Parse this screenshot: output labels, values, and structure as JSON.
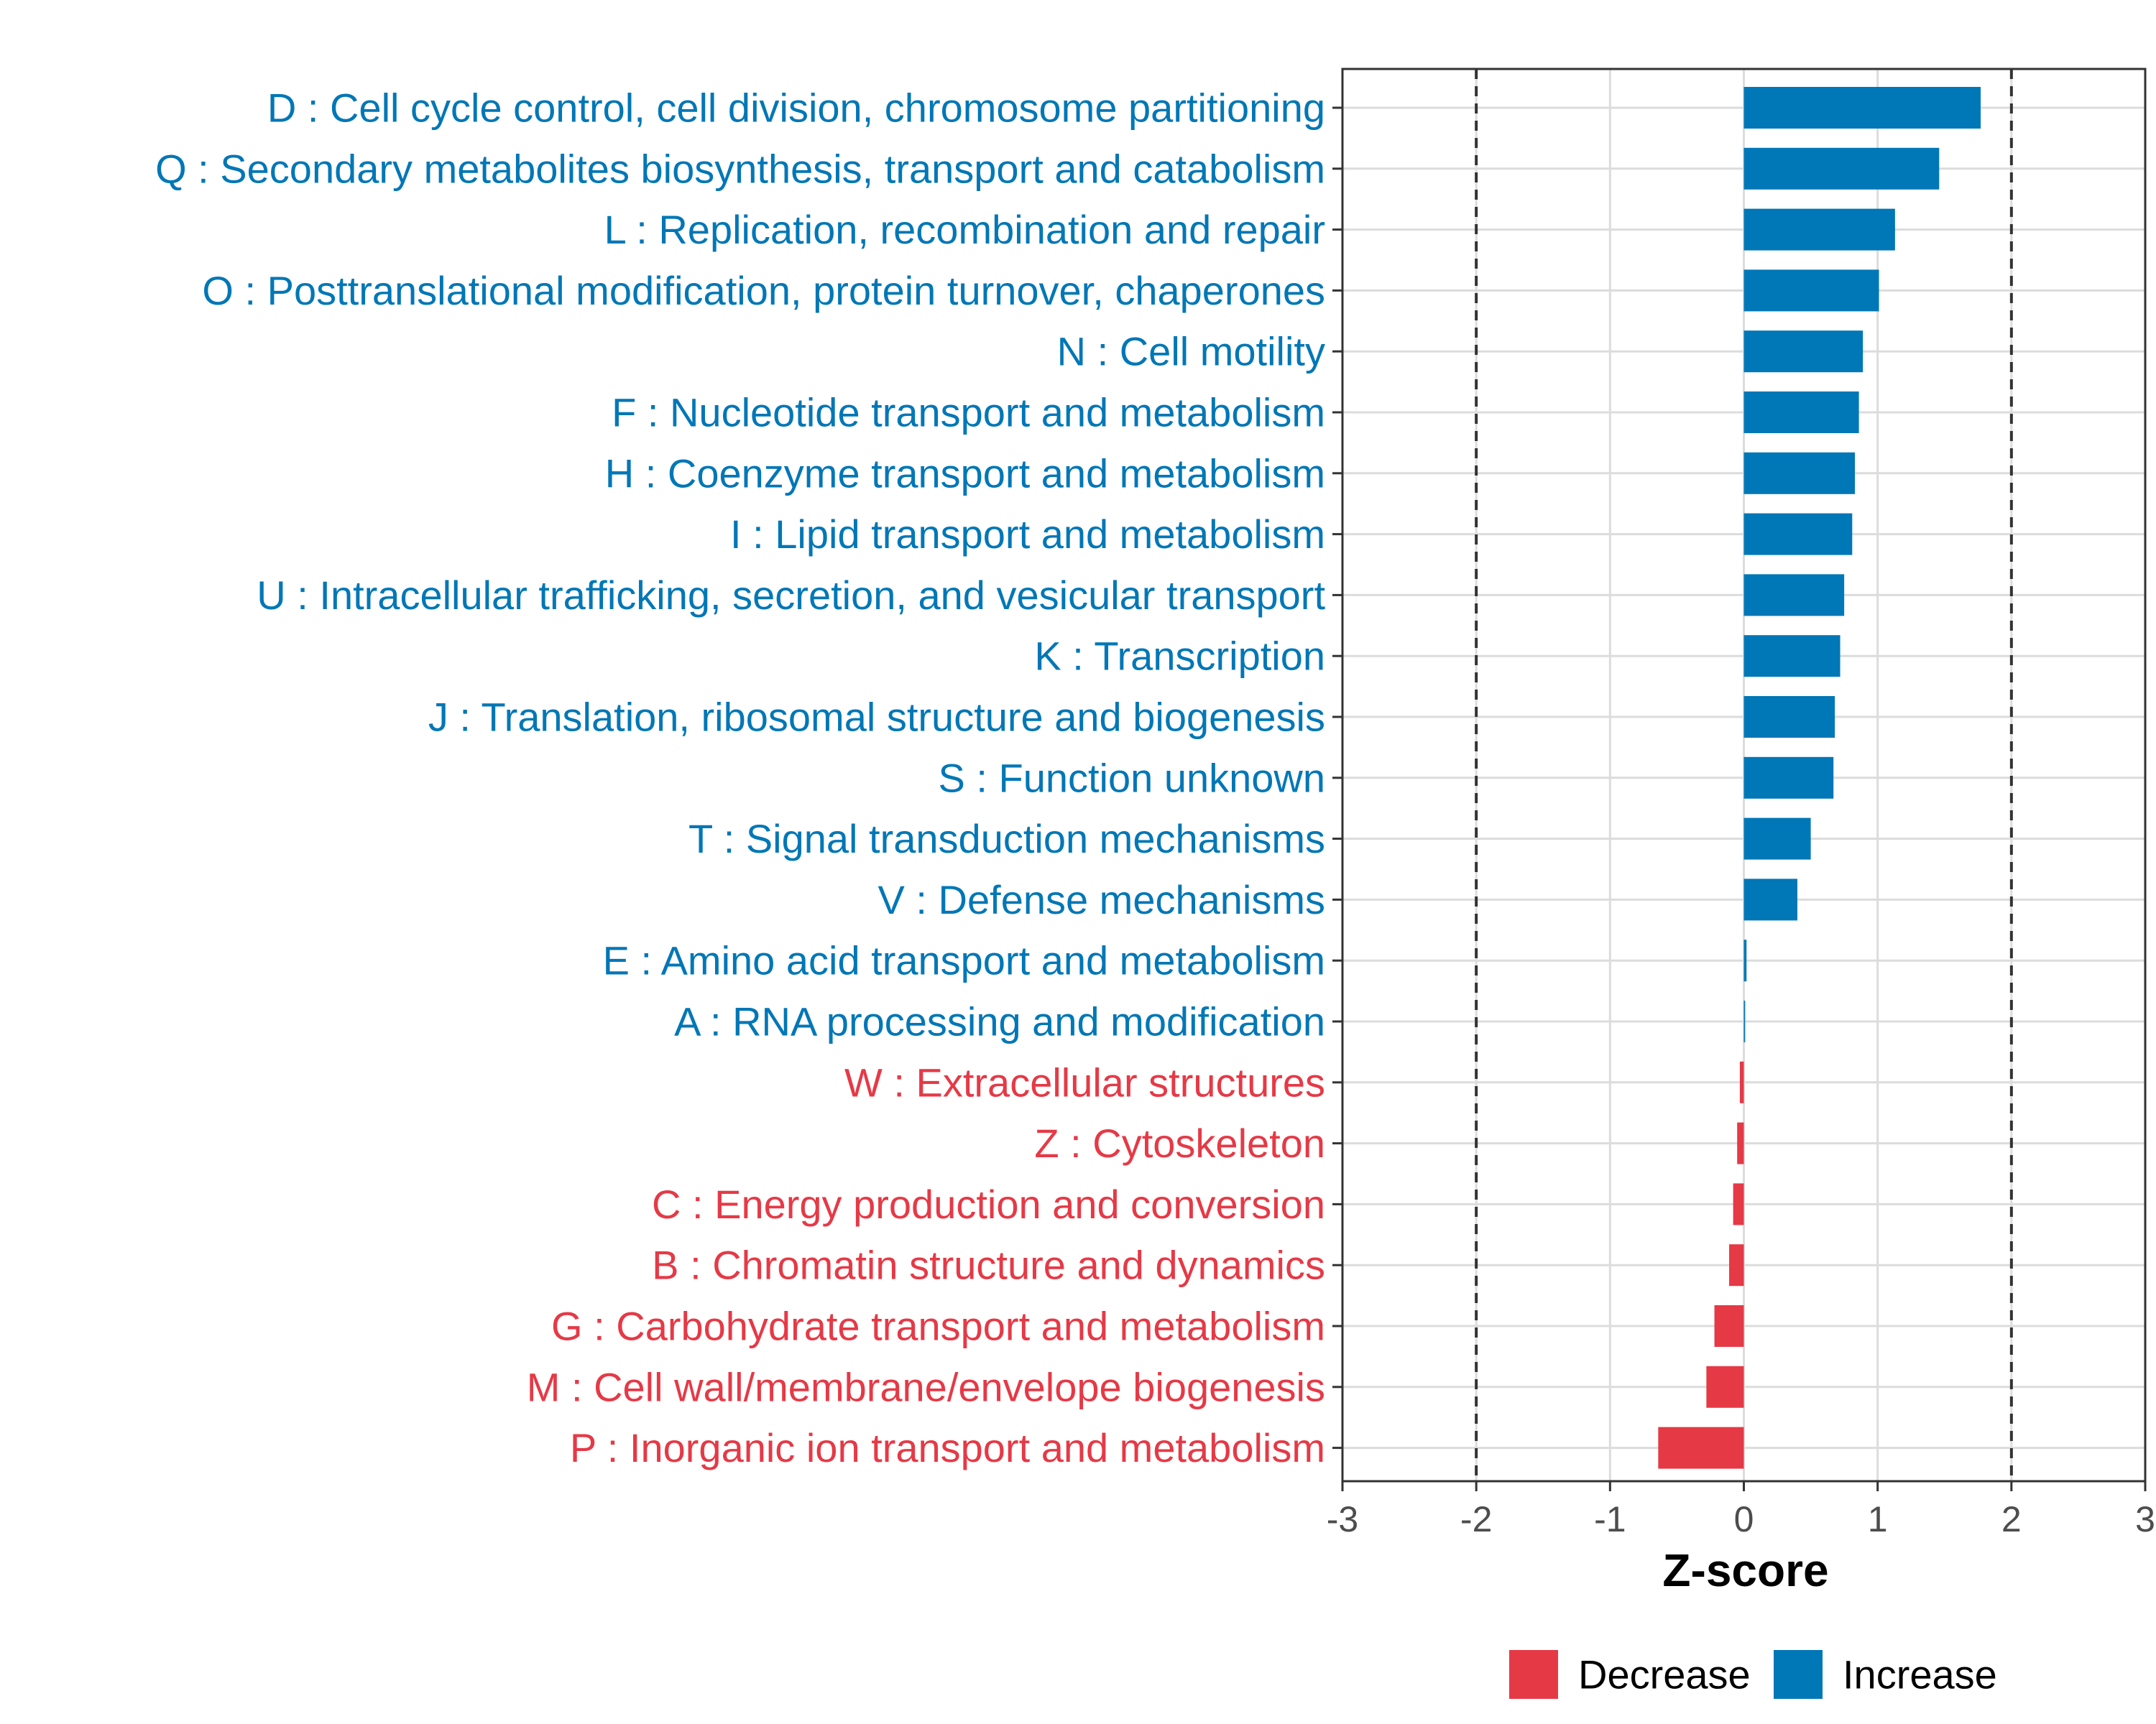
{
  "chart_data": {
    "type": "bar",
    "orientation": "horizontal",
    "xlabel": "Z-score",
    "xlim": [
      -3,
      3
    ],
    "xticks": [
      -3,
      -2,
      -1,
      0,
      1,
      2,
      3
    ],
    "xtick_labels": [
      "-3",
      "-2",
      "-1",
      "0",
      "1",
      "2",
      "3"
    ],
    "reference_lines": [
      -2,
      2
    ],
    "grid": true,
    "legend_position": "bottom",
    "colors": {
      "Decrease": "#e63946",
      "Increase": "#0077b6"
    },
    "legend": [
      {
        "name": "Decrease",
        "color": "#e63946"
      },
      {
        "name": "Increase",
        "color": "#0077b6"
      }
    ],
    "categories": [
      "D : Cell cycle control, cell division, chromosome partitioning",
      "Q : Secondary metabolites biosynthesis, transport and catabolism",
      "L : Replication, recombination and repair",
      "O : Posttranslational modification, protein turnover, chaperones",
      "N : Cell motility",
      "F : Nucleotide transport and metabolism",
      "H : Coenzyme transport and metabolism",
      "I : Lipid transport and metabolism",
      "U : Intracellular trafficking, secretion, and vesicular transport",
      "K : Transcription",
      "J : Translation, ribosomal structure and biogenesis",
      "S : Function unknown",
      "T : Signal transduction mechanisms",
      "V : Defense mechanisms",
      "E : Amino acid transport and metabolism",
      "A : RNA processing and modification",
      "W : Extracellular structures",
      "Z : Cytoskeleton",
      "C : Energy production and conversion",
      "B : Chromatin structure and dynamics",
      "G : Carbohydrate transport and metabolism",
      "M : Cell wall/membrane/envelope biogenesis",
      "P : Inorganic ion transport and metabolism"
    ],
    "values": [
      1.77,
      1.46,
      1.13,
      1.01,
      0.89,
      0.86,
      0.83,
      0.81,
      0.75,
      0.72,
      0.68,
      0.67,
      0.5,
      0.4,
      0.02,
      0.01,
      -0.03,
      -0.05,
      -0.08,
      -0.11,
      -0.22,
      -0.28,
      -0.64
    ],
    "groups": [
      "Increase",
      "Increase",
      "Increase",
      "Increase",
      "Increase",
      "Increase",
      "Increase",
      "Increase",
      "Increase",
      "Increase",
      "Increase",
      "Increase",
      "Increase",
      "Increase",
      "Increase",
      "Increase",
      "Decrease",
      "Decrease",
      "Decrease",
      "Decrease",
      "Decrease",
      "Decrease",
      "Decrease"
    ]
  }
}
